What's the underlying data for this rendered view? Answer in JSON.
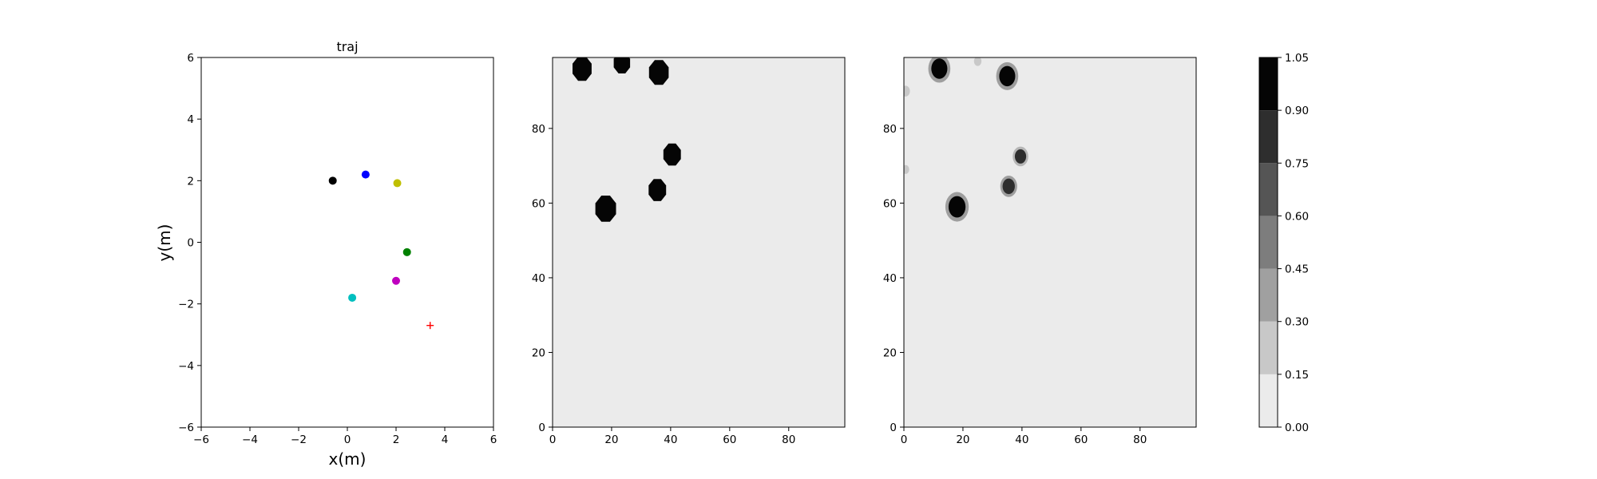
{
  "chart_data": [
    {
      "type": "scatter",
      "title": "traj",
      "xlabel": "x(m)",
      "ylabel": "y(m)",
      "xlim": [
        -6,
        6
      ],
      "ylim": [
        -6,
        6
      ],
      "xticks": [
        -6,
        -4,
        -2,
        0,
        2,
        4,
        6
      ],
      "yticks": [
        -6,
        -4,
        -2,
        0,
        2,
        4,
        6
      ],
      "grid": false,
      "series": [
        {
          "color": "#000000",
          "marker": "circle",
          "points": [
            [
              -0.6,
              2.0
            ]
          ]
        },
        {
          "color": "#0000ff",
          "marker": "circle",
          "points": [
            [
              0.75,
              2.2
            ]
          ]
        },
        {
          "color": "#bfbf00",
          "marker": "circle",
          "points": [
            [
              2.05,
              1.92
            ]
          ]
        },
        {
          "color": "#008000",
          "marker": "circle",
          "points": [
            [
              2.45,
              -0.32
            ]
          ]
        },
        {
          "color": "#bf00bf",
          "marker": "circle",
          "points": [
            [
              2.0,
              -1.25
            ]
          ]
        },
        {
          "color": "#00bfbf",
          "marker": "circle",
          "points": [
            [
              0.2,
              -1.8
            ]
          ]
        },
        {
          "color": "#ff0000",
          "marker": "plus",
          "points": [
            [
              3.4,
              -2.7
            ]
          ]
        }
      ]
    },
    {
      "type": "heatmap",
      "title": "",
      "xlim": [
        0,
        99
      ],
      "ylim": [
        0,
        99
      ],
      "xticks": [
        0,
        20,
        40,
        60,
        80
      ],
      "yticks": [
        0,
        20,
        40,
        60,
        80
      ],
      "background_level": 0.0,
      "blobs": [
        {
          "x": 10,
          "y": 96,
          "r": 3.5,
          "level": 1.0,
          "shape": "octagon"
        },
        {
          "x": 23.5,
          "y": 97.5,
          "r": 3.0,
          "level": 1.0,
          "shape": "octagon"
        },
        {
          "x": 36,
          "y": 95,
          "r": 3.6,
          "level": 1.0,
          "shape": "octagon"
        },
        {
          "x": 40.5,
          "y": 73,
          "r": 3.2,
          "level": 1.0,
          "shape": "octagon"
        },
        {
          "x": 35.5,
          "y": 63.5,
          "r": 3.2,
          "level": 1.0,
          "shape": "octagon"
        },
        {
          "x": 18,
          "y": 58.5,
          "r": 3.8,
          "level": 1.0,
          "shape": "octagon"
        }
      ]
    },
    {
      "type": "heatmap",
      "title": "",
      "xlim": [
        0,
        99
      ],
      "ylim": [
        0,
        99
      ],
      "xticks": [
        0,
        20,
        40,
        60,
        80
      ],
      "yticks": [
        0,
        20,
        40,
        60,
        80
      ],
      "background_level": 0.0,
      "blobs": [
        {
          "x": 12,
          "y": 96,
          "r": 3.4,
          "level": 0.9,
          "shape": "blob"
        },
        {
          "x": 35,
          "y": 94,
          "r": 3.4,
          "level": 0.95,
          "shape": "blob"
        },
        {
          "x": 39.5,
          "y": 72.5,
          "r": 2.4,
          "level": 0.8,
          "shape": "blob"
        },
        {
          "x": 35.5,
          "y": 64.5,
          "r": 2.6,
          "level": 0.85,
          "shape": "blob"
        },
        {
          "x": 18,
          "y": 59,
          "r": 3.6,
          "level": 1.0,
          "shape": "blob"
        },
        {
          "x": 25,
          "y": 98,
          "r": 1.6,
          "level": 0.25,
          "shape": "blob"
        },
        {
          "x": 0.6,
          "y": 90,
          "r": 1.8,
          "level": 0.2,
          "shape": "blob"
        },
        {
          "x": 0.6,
          "y": 69,
          "r": 1.5,
          "level": 0.2,
          "shape": "blob"
        }
      ]
    },
    {
      "type": "colorbar",
      "levels": [
        0.0,
        0.15,
        0.3,
        0.45,
        0.6,
        0.75,
        0.9,
        1.05
      ],
      "tick_labels": [
        "0.00",
        "0.15",
        "0.30",
        "0.45",
        "0.60",
        "0.75",
        "0.90",
        "1.05"
      ],
      "colors": [
        "#ebebeb",
        "#c8c8c8",
        "#a0a0a0",
        "#7d7d7d",
        "#555555",
        "#2e2e2e",
        "#050505"
      ]
    }
  ]
}
